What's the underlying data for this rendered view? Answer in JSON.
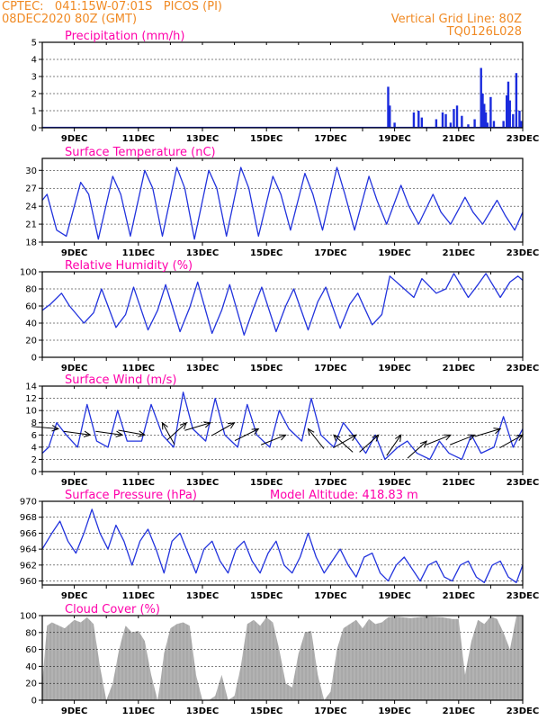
{
  "header": {
    "left_line1": "CPTEC:   041:15W-07:01S   PICOS (PI)",
    "left_line2": "08DEC2020 80Z (GMT)",
    "right_line1": "Vertical Grid Line: 80Z",
    "right_line2": "TQ0126L028"
  },
  "x_axis": {
    "days": [
      "9DEC",
      "11DEC",
      "13DEC",
      "15DEC",
      "17DEC",
      "19DEC",
      "21DEC",
      "23DEC"
    ],
    "day_numbers": [
      9,
      11,
      13,
      15,
      17,
      19,
      21,
      23
    ],
    "range": [
      8.0,
      23.0
    ]
  },
  "colors": {
    "line": "#2233dd",
    "bar": "#1a2bdd",
    "cloud": "#a9a9a9",
    "title": "#ff00aa",
    "header": "#f08a24"
  },
  "chart_data": [
    {
      "id": "precip",
      "type": "bar",
      "title": "Precipitation (mm/h)",
      "ylim": [
        0,
        5
      ],
      "yticks": [
        "0",
        "1",
        "2",
        "3",
        "4",
        "5"
      ],
      "x": [
        18.8,
        18.85,
        19.0,
        19.6,
        19.75,
        19.85,
        20.3,
        20.5,
        20.6,
        20.75,
        20.85,
        20.95,
        21.1,
        21.3,
        21.5,
        21.7,
        21.75,
        21.8,
        21.85,
        21.9,
        22.0,
        22.1,
        22.4,
        22.5,
        22.55,
        22.6,
        22.7,
        22.8,
        22.9,
        22.95
      ],
      "values": [
        2.4,
        1.3,
        0.3,
        0.9,
        1.0,
        0.6,
        0.5,
        0.9,
        0.8,
        0.3,
        1.1,
        1.3,
        0.7,
        0.2,
        0.5,
        3.5,
        2.0,
        1.4,
        0.9,
        0.3,
        1.8,
        0.4,
        0.4,
        1.9,
        2.7,
        1.6,
        0.8,
        3.2,
        1.0,
        0.4
      ]
    },
    {
      "id": "temp",
      "type": "line",
      "title": "Surface Temperature (nC)",
      "ylim": [
        18,
        32
      ],
      "yticks": [
        "18",
        "21",
        "24",
        "27",
        "30"
      ],
      "x": [
        8.0,
        8.15,
        8.45,
        8.75,
        9.2,
        9.45,
        9.75,
        10.2,
        10.45,
        10.75,
        11.2,
        11.45,
        11.75,
        12.2,
        12.45,
        12.75,
        13.2,
        13.45,
        13.75,
        14.2,
        14.45,
        14.75,
        15.2,
        15.45,
        15.75,
        16.2,
        16.45,
        16.75,
        17.2,
        17.45,
        17.75,
        18.2,
        18.45,
        18.75,
        19.2,
        19.45,
        19.75,
        20.2,
        20.45,
        20.75,
        21.2,
        21.45,
        21.75,
        22.2,
        22.45,
        22.75,
        23.0
      ],
      "values": [
        25,
        26,
        20,
        19,
        28,
        26,
        18.5,
        29,
        26,
        19,
        30,
        27,
        19,
        30.5,
        27,
        18.5,
        30,
        27,
        19,
        30.5,
        27,
        19,
        29,
        26,
        20,
        29.5,
        26,
        20,
        30.5,
        26,
        20,
        29,
        25,
        21,
        27.5,
        24,
        21,
        26,
        23,
        21,
        25.5,
        23,
        21,
        25,
        22.5,
        20,
        23
      ]
    },
    {
      "id": "rh",
      "type": "line",
      "title": "Relative Humidity (%)",
      "ylim": [
        0,
        100
      ],
      "yticks": [
        "0",
        "20",
        "40",
        "60",
        "80",
        "100"
      ],
      "x": [
        8.0,
        8.25,
        8.6,
        8.85,
        9.3,
        9.6,
        9.85,
        10.3,
        10.6,
        10.85,
        11.3,
        11.6,
        11.85,
        12.3,
        12.6,
        12.85,
        13.3,
        13.6,
        13.85,
        14.3,
        14.6,
        14.85,
        15.3,
        15.6,
        15.85,
        16.3,
        16.6,
        16.85,
        17.3,
        17.6,
        17.85,
        18.3,
        18.6,
        18.85,
        19.3,
        19.6,
        19.85,
        20.3,
        20.6,
        20.85,
        21.3,
        21.6,
        21.85,
        22.3,
        22.6,
        22.85,
        23.0
      ],
      "values": [
        55,
        62,
        75,
        60,
        40,
        52,
        80,
        35,
        50,
        82,
        32,
        55,
        85,
        30,
        58,
        88,
        28,
        55,
        85,
        26,
        58,
        82,
        30,
        60,
        80,
        32,
        65,
        82,
        34,
        62,
        75,
        38,
        50,
        95,
        80,
        70,
        92,
        75,
        80,
        98,
        70,
        85,
        98,
        70,
        88,
        95,
        90
      ]
    },
    {
      "id": "wind",
      "type": "line",
      "title": "Surface Wind (m/s)",
      "ylim": [
        0,
        14
      ],
      "yticks": [
        "0",
        "2",
        "4",
        "6",
        "8",
        "10",
        "12",
        "14"
      ],
      "x": [
        8.0,
        8.2,
        8.45,
        8.75,
        9.1,
        9.4,
        9.7,
        10.05,
        10.35,
        10.65,
        11.1,
        11.4,
        11.75,
        12.1,
        12.4,
        12.7,
        13.1,
        13.4,
        13.7,
        14.1,
        14.4,
        14.7,
        15.1,
        15.4,
        15.7,
        16.1,
        16.4,
        16.7,
        17.1,
        17.4,
        17.7,
        18.1,
        18.4,
        18.7,
        19.1,
        19.4,
        19.7,
        20.1,
        20.4,
        20.7,
        21.1,
        21.4,
        21.7,
        22.1,
        22.4,
        22.7,
        23.0
      ],
      "values": [
        3,
        4,
        8,
        6,
        4,
        11,
        5,
        4,
        10,
        5,
        5,
        11,
        6,
        4,
        13,
        7,
        5,
        12,
        6,
        4,
        11,
        6,
        4,
        10,
        7,
        5,
        12,
        6,
        4,
        8,
        6,
        3,
        6,
        2,
        4,
        5,
        3,
        2,
        5,
        3,
        2,
        6,
        3,
        4,
        9,
        4,
        7
      ],
      "arrows_x": [
        8.5,
        9.5,
        10.5,
        11.2,
        11.75,
        12.5,
        13.25,
        14.0,
        14.75,
        15.6,
        16.3,
        17.1,
        17.8,
        18.5,
        19.2,
        20.0,
        20.75,
        21.5,
        22.3,
        23.0
      ],
      "arrows_speed": [
        7,
        6,
        6,
        6,
        8,
        8,
        8,
        8,
        7,
        6,
        7,
        6,
        6,
        6,
        6,
        5,
        6,
        6,
        7,
        6
      ],
      "arrows_dx": [
        -1,
        -1,
        -1,
        -1,
        0.3,
        -0.6,
        -0.9,
        -0.8,
        -0.9,
        -0.9,
        0.5,
        0.6,
        -0.8,
        -0.6,
        -0.5,
        -0.7,
        -0.9,
        -0.9,
        -0.9,
        -0.8
      ],
      "arrows_dy": [
        -0.1,
        -0.15,
        -0.15,
        -0.2,
        0.6,
        0.6,
        0.3,
        0.5,
        0.5,
        0.4,
        0.7,
        0.6,
        0.5,
        0.6,
        0.8,
        0.7,
        0.4,
        0.4,
        0.3,
        0.5
      ]
    },
    {
      "id": "pres",
      "type": "line",
      "title": "Surface Pressure (hPa)",
      "annotation": "Model Altitude: 418.83 m",
      "ylim": [
        959.5,
        970
      ],
      "yticks": [
        "960",
        "962",
        "964",
        "966",
        "968",
        "970"
      ],
      "x": [
        8.0,
        8.3,
        8.55,
        8.8,
        9.05,
        9.3,
        9.55,
        9.8,
        10.05,
        10.3,
        10.55,
        10.8,
        11.05,
        11.3,
        11.55,
        11.8,
        12.05,
        12.3,
        12.55,
        12.8,
        13.05,
        13.3,
        13.55,
        13.8,
        14.05,
        14.3,
        14.55,
        14.8,
        15.05,
        15.3,
        15.55,
        15.8,
        16.05,
        16.3,
        16.55,
        16.8,
        17.05,
        17.3,
        17.55,
        17.8,
        18.05,
        18.3,
        18.55,
        18.8,
        19.05,
        19.3,
        19.55,
        19.8,
        20.05,
        20.3,
        20.55,
        20.8,
        21.05,
        21.3,
        21.55,
        21.8,
        22.05,
        22.3,
        22.55,
        22.8,
        23.0
      ],
      "values": [
        964,
        966,
        967.5,
        965,
        963.5,
        966,
        969,
        966,
        964,
        967,
        965,
        962,
        965,
        966.5,
        964,
        961,
        965,
        966,
        963.5,
        961,
        964,
        965,
        962.5,
        961,
        964,
        965,
        962.5,
        961,
        963.5,
        965,
        962,
        961,
        963,
        966,
        963,
        961,
        962.5,
        964,
        962,
        960.5,
        963,
        963.5,
        961,
        960,
        962,
        963,
        961.5,
        960,
        962,
        962.5,
        960.5,
        960,
        962,
        962.5,
        960.5,
        959.8,
        962,
        962.5,
        960.5,
        959.8,
        962
      ]
    },
    {
      "id": "cloud",
      "type": "area",
      "title": "Cloud Cover (%)",
      "ylim": [
        0,
        100
      ],
      "yticks": [
        "0",
        "20",
        "40",
        "60",
        "80",
        "100"
      ],
      "x": [
        8.0,
        8.15,
        8.3,
        8.7,
        9.0,
        9.2,
        9.4,
        9.6,
        9.8,
        10.0,
        10.2,
        10.4,
        10.5,
        10.6,
        10.8,
        11.0,
        11.2,
        11.4,
        11.6,
        11.7,
        11.8,
        12.0,
        12.2,
        12.4,
        12.6,
        12.8,
        13.0,
        13.2,
        13.4,
        13.6,
        13.8,
        14.0,
        14.2,
        14.4,
        14.6,
        14.8,
        15.0,
        15.2,
        15.4,
        15.6,
        15.8,
        16.0,
        16.2,
        16.4,
        16.6,
        16.8,
        17.0,
        17.2,
        17.4,
        17.6,
        17.8,
        18.0,
        18.2,
        18.4,
        18.6,
        18.8,
        19.0,
        19.5,
        20.0,
        20.5,
        20.8,
        21.0,
        21.2,
        21.4,
        21.6,
        21.8,
        22.0,
        22.2,
        22.4,
        22.6,
        22.8,
        23.0
      ],
      "values": [
        20,
        88,
        92,
        85,
        95,
        92,
        98,
        90,
        40,
        0,
        20,
        60,
        75,
        88,
        80,
        82,
        70,
        30,
        0,
        25,
        55,
        85,
        90,
        92,
        88,
        30,
        0,
        0,
        5,
        30,
        0,
        5,
        40,
        90,
        95,
        88,
        98,
        92,
        60,
        20,
        15,
        55,
        80,
        82,
        30,
        0,
        10,
        60,
        85,
        90,
        95,
        85,
        96,
        90,
        92,
        98,
        99,
        97,
        99,
        98,
        96,
        96,
        30,
        70,
        95,
        90,
        99,
        96,
        80,
        60,
        99,
        99
      ]
    }
  ]
}
